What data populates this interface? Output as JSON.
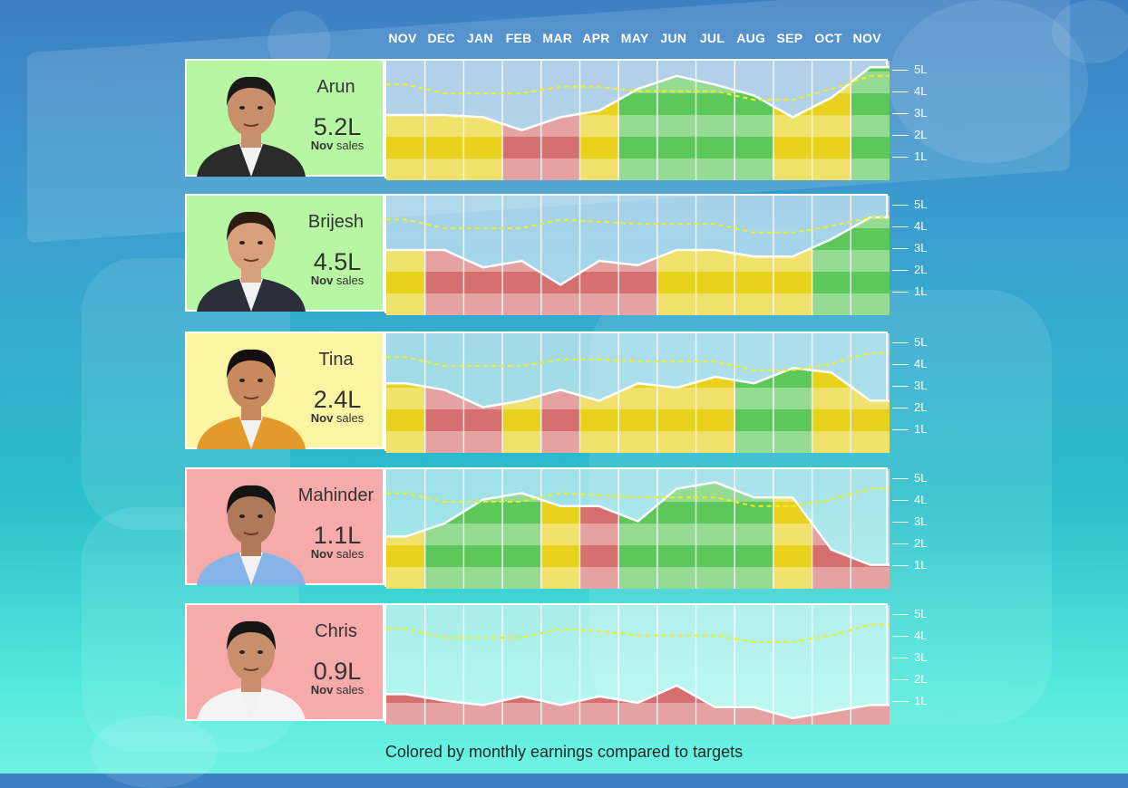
{
  "months": [
    "NOV",
    "DEC",
    "JAN",
    "FEB",
    "MAR",
    "APR",
    "MAY",
    "JUN",
    "JUL",
    "AUG",
    "SEP",
    "OCT",
    "NOV"
  ],
  "axis_ticks": [
    "5L",
    "4L",
    "3L",
    "2L",
    "1L"
  ],
  "caption_prefix": "Nov",
  "caption_suffix": "sales",
  "footnote": "Colored by monthly earnings compared to targets",
  "colors": {
    "green": "#5cc85a",
    "yellow": "#e8d21e",
    "red": "#d67070",
    "card_green": "#b7f7a4",
    "card_yellow": "#fbf4a3",
    "card_red": "#f7aaaa",
    "target_line": "#f0f01e"
  },
  "people": [
    {
      "name": "Arun",
      "big": "5.2L",
      "card": "green",
      "shirt": "#2a2a2a",
      "skin": "#c88f6c",
      "hair": "#1a1a1a"
    },
    {
      "name": "Brijesh",
      "big": "4.5L",
      "card": "green",
      "shirt": "#2b2f3a",
      "skin": "#d9a07c",
      "hair": "#2a1c12"
    },
    {
      "name": "Tina",
      "big": "2.4L",
      "card": "yellow",
      "shirt": "#e39a2a",
      "skin": "#c98a60",
      "hair": "#151010"
    },
    {
      "name": "Mahinder",
      "big": "1.1L",
      "card": "red",
      "shirt": "#86b4e8",
      "skin": "#b07a5a",
      "hair": "#141414"
    },
    {
      "name": "Chris",
      "big": "0.9L",
      "card": "red",
      "shirt": "#f4f4f4",
      "skin": "#c88f6c",
      "hair": "#151515"
    }
  ],
  "chart_data": {
    "type": "area",
    "title": "",
    "categories": [
      "NOV",
      "DEC",
      "JAN",
      "FEB",
      "MAR",
      "APR",
      "MAY",
      "JUN",
      "JUL",
      "AUG",
      "SEP",
      "OCT",
      "NOV"
    ],
    "y_unit": "L",
    "ylim": [
      0,
      5.5
    ],
    "legend": "none",
    "series": [
      {
        "name": "Arun",
        "values": [
          3.0,
          3.0,
          2.9,
          2.3,
          2.9,
          3.2,
          4.2,
          4.8,
          4.4,
          3.9,
          2.9,
          3.8,
          5.2
        ],
        "targets": [
          4.4,
          4.0,
          4.0,
          4.0,
          4.3,
          4.3,
          4.1,
          4.1,
          4.1,
          3.7,
          3.7,
          4.2,
          4.8
        ],
        "colors": [
          "yellow",
          "yellow",
          "yellow",
          "red",
          "red",
          "yellow",
          "green",
          "green",
          "green",
          "green",
          "yellow",
          "yellow",
          "green"
        ]
      },
      {
        "name": "Brijesh",
        "values": [
          3.0,
          3.0,
          2.2,
          2.5,
          1.4,
          2.5,
          2.3,
          3.0,
          3.0,
          2.7,
          2.7,
          3.5,
          4.5
        ],
        "targets": [
          4.4,
          4.0,
          4.0,
          4.0,
          4.4,
          4.3,
          4.2,
          4.2,
          4.2,
          3.8,
          3.8,
          4.1,
          4.5
        ],
        "colors": [
          "yellow",
          "red",
          "red",
          "red",
          "red",
          "red",
          "red",
          "yellow",
          "yellow",
          "yellow",
          "yellow",
          "green",
          "green"
        ]
      },
      {
        "name": "Tina",
        "values": [
          3.2,
          2.9,
          2.1,
          2.4,
          2.9,
          2.4,
          3.2,
          3.0,
          3.5,
          3.2,
          3.9,
          3.7,
          2.4
        ],
        "targets": [
          4.4,
          4.0,
          4.0,
          4.0,
          4.3,
          4.3,
          4.2,
          4.2,
          4.2,
          3.8,
          3.8,
          4.1,
          4.6
        ],
        "colors": [
          "yellow",
          "red",
          "red",
          "yellow",
          "red",
          "yellow",
          "yellow",
          "yellow",
          "yellow",
          "green",
          "green",
          "yellow",
          "yellow"
        ]
      },
      {
        "name": "Mahinder",
        "values": [
          2.4,
          3.0,
          4.1,
          4.4,
          3.8,
          3.8,
          3.1,
          4.6,
          4.9,
          4.2,
          4.2,
          1.8,
          1.1
        ],
        "targets": [
          4.4,
          4.0,
          4.0,
          4.0,
          4.4,
          4.3,
          4.2,
          4.2,
          4.2,
          3.8,
          3.8,
          4.1,
          4.6
        ],
        "colors": [
          "yellow",
          "green",
          "green",
          "green",
          "yellow",
          "red",
          "green",
          "green",
          "green",
          "green",
          "yellow",
          "red",
          "red"
        ]
      },
      {
        "name": "Chris",
        "values": [
          1.4,
          1.1,
          0.9,
          1.3,
          0.9,
          1.3,
          1.0,
          1.8,
          0.8,
          0.8,
          0.3,
          0.6,
          0.9
        ],
        "targets": [
          4.4,
          4.0,
          4.0,
          4.0,
          4.4,
          4.3,
          4.1,
          4.1,
          4.1,
          3.8,
          3.8,
          4.1,
          4.6
        ],
        "colors": [
          "red",
          "red",
          "red",
          "red",
          "red",
          "red",
          "red",
          "red",
          "red",
          "red",
          "red",
          "red",
          "red"
        ]
      }
    ]
  }
}
